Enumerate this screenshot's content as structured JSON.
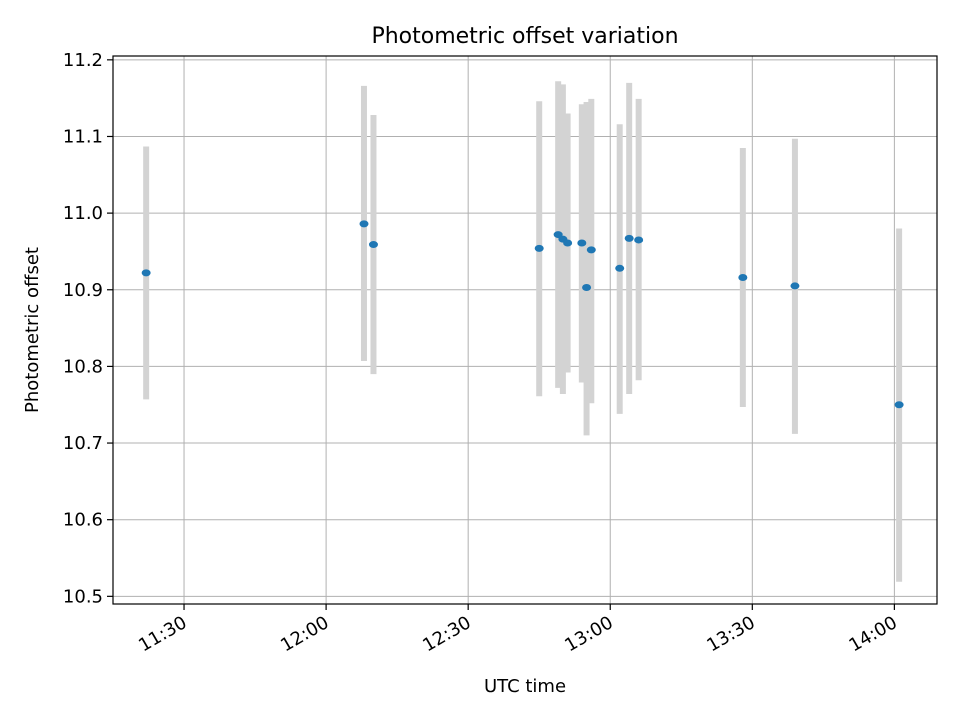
{
  "chart_data": {
    "type": "scatter",
    "title": "Photometric offset variation",
    "xlabel": "UTC time",
    "ylabel": "Photometric offset",
    "x_ticks": [
      "11:30",
      "12:00",
      "12:30",
      "13:00",
      "13:30",
      "14:00"
    ],
    "xlim": [
      "11:15",
      "14:09"
    ],
    "y_ticks": [
      "10.5",
      "10.6",
      "10.7",
      "10.8",
      "10.9",
      "11.0",
      "11.1",
      "11.2"
    ],
    "ylim": [
      10.49,
      11.205
    ],
    "grid": true,
    "colors": {
      "point": "#1f77b4",
      "errorbar": "#d3d3d3",
      "grid": "#b0b0b0"
    },
    "series": [
      {
        "points": [
          {
            "x": "11:22",
            "y": 10.922,
            "ylo": 10.757,
            "yhi": 11.087
          },
          {
            "x": "12:08",
            "y": 10.986,
            "ylo": 10.807,
            "yhi": 11.166
          },
          {
            "x": "12:10",
            "y": 10.959,
            "ylo": 10.79,
            "yhi": 11.128
          },
          {
            "x": "12:45",
            "y": 10.954,
            "ylo": 10.761,
            "yhi": 11.146
          },
          {
            "x": "12:49",
            "y": 10.972,
            "ylo": 10.772,
            "yhi": 11.172
          },
          {
            "x": "12:50",
            "y": 10.966,
            "ylo": 10.764,
            "yhi": 11.168
          },
          {
            "x": "12:51",
            "y": 10.961,
            "ylo": 10.792,
            "yhi": 11.13
          },
          {
            "x": "12:54",
            "y": 10.961,
            "ylo": 10.779,
            "yhi": 11.142
          },
          {
            "x": "12:55",
            "y": 10.903,
            "ylo": 10.71,
            "yhi": 11.145
          },
          {
            "x": "12:56",
            "y": 10.952,
            "ylo": 10.752,
            "yhi": 11.149
          },
          {
            "x": "13:02",
            "y": 10.928,
            "ylo": 10.738,
            "yhi": 11.116
          },
          {
            "x": "13:04",
            "y": 10.967,
            "ylo": 10.764,
            "yhi": 11.17
          },
          {
            "x": "13:06",
            "y": 10.965,
            "ylo": 10.782,
            "yhi": 11.149
          },
          {
            "x": "13:28",
            "y": 10.916,
            "ylo": 10.747,
            "yhi": 11.085
          },
          {
            "x": "13:39",
            "y": 10.905,
            "ylo": 10.712,
            "yhi": 11.097
          },
          {
            "x": "14:01",
            "y": 10.75,
            "ylo": 10.519,
            "yhi": 10.98
          }
        ]
      }
    ]
  }
}
